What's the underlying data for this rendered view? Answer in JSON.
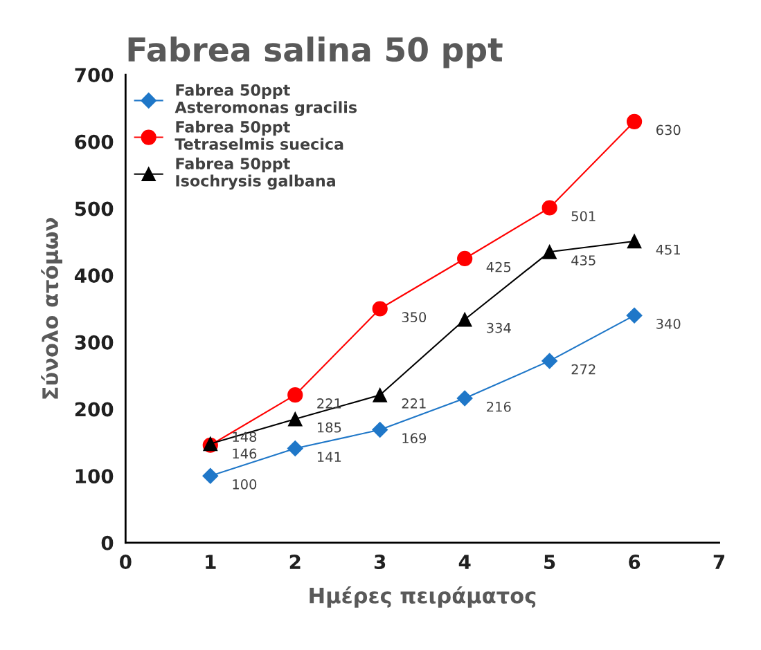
{
  "chart_data": {
    "type": "line",
    "title": "Fabrea salina 50 ppt",
    "xlabel": "Ημέρες πειράματος",
    "ylabel": "Σύνολο ατόμων",
    "x": [
      1,
      2,
      3,
      4,
      5,
      6
    ],
    "series": [
      {
        "name": "Fabrea 50ppt\nAsteromonas gracilis",
        "color": "#1f77c8",
        "marker": "diamond",
        "values": [
          100,
          141,
          169,
          216,
          272,
          340
        ]
      },
      {
        "name": "Fabrea 50ppt\nTetraselmis suecica",
        "color": "#ff0000",
        "marker": "circle",
        "values": [
          146,
          221,
          350,
          425,
          501,
          630
        ]
      },
      {
        "name": "Fabrea 50ppt\nIsochrysis galbana",
        "color": "#000000",
        "marker": "triangle",
        "values": [
          148,
          185,
          221,
          334,
          435,
          451
        ]
      }
    ],
    "xlim": [
      0,
      7
    ],
    "xticks": [
      0,
      1,
      2,
      3,
      4,
      5,
      6,
      7
    ],
    "ylim": [
      0,
      700
    ],
    "yticks": [
      0,
      100,
      200,
      300,
      400,
      500,
      600,
      700
    ],
    "data_labels": true,
    "legend": "top left",
    "grid": false
  }
}
